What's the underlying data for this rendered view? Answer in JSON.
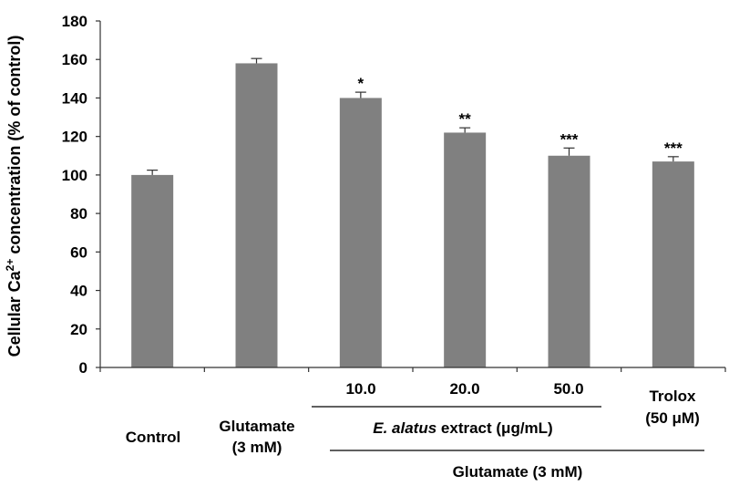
{
  "chart_data": {
    "type": "bar",
    "categories": [
      "Control",
      "Glutamate (3 mM)",
      "10.0",
      "20.0",
      "50.0",
      "Trolox (50 μM)"
    ],
    "values": [
      100,
      158,
      140,
      122,
      110,
      107
    ],
    "errors": [
      2.5,
      2.5,
      3,
      2.5,
      4,
      2.5
    ],
    "significance": [
      "",
      "",
      "*",
      "**",
      "***",
      "***"
    ],
    "ylabel": {
      "prefix": "Cellular Ca",
      "superscript": "2+",
      "suffix": " concentration (% of control)"
    },
    "ylim": [
      0,
      180
    ],
    "yticks": [
      0,
      20,
      40,
      60,
      80,
      100,
      120,
      140,
      160,
      180
    ],
    "bar_color": "#808080",
    "group_labels": {
      "control": "Control",
      "glutamate_line1": "Glutamate",
      "glutamate_line2": "(3 mM)",
      "trolox_line1": "Trolox",
      "trolox_line2": "(50 μM)",
      "extract_italic": "E. alatus",
      "extract_rest": " extract (μg/mL)",
      "glutamate_group": "Glutamate (3 mM)"
    }
  }
}
